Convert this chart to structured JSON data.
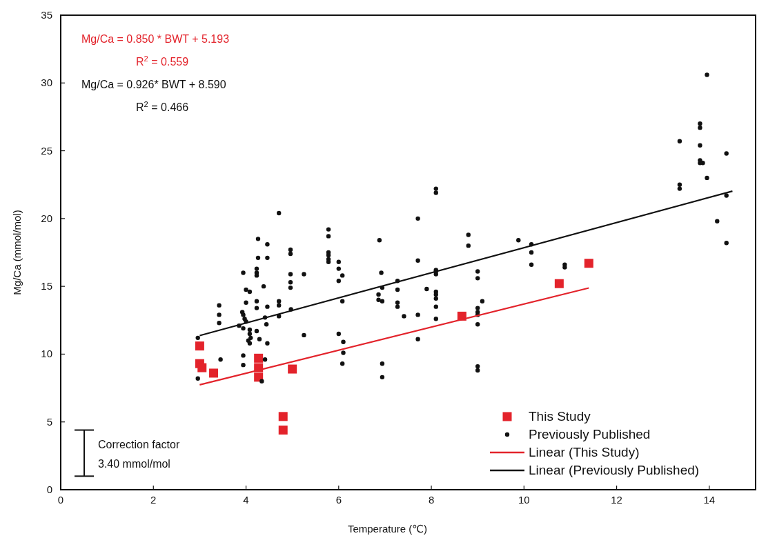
{
  "chart_data": {
    "type": "scatter",
    "xlabel": "Temperature (℃)",
    "ylabel": "Mg/Ca (mmol/mol)",
    "xlim": [
      0,
      15
    ],
    "ylim": [
      0,
      35
    ],
    "xticks": [
      0,
      2,
      4,
      6,
      8,
      10,
      12,
      14
    ],
    "yticks": [
      0,
      5,
      10,
      15,
      20,
      25,
      30,
      35
    ],
    "grid": false,
    "legend": "bottom right",
    "annotations": [
      "Mg/Ca = 0.850 * BWT + 5.193",
      "R$^{2}$ = 0.559",
      "Mg/Ca = 0.926* BWT + 8.590",
      "R$^{2}$ = 0.466",
      "Correction factor\n3.40 mmol/mol"
    ],
    "series": [
      {
        "name": "This Study",
        "marker": "square",
        "color": "#e3232b",
        "x": [
          3.0,
          3.0,
          3.05,
          3.3,
          4.27,
          4.27,
          4.27,
          5.0,
          4.8,
          4.8,
          8.66,
          10.76,
          11.4
        ],
        "values": [
          10.6,
          9.3,
          9.0,
          8.6,
          9.7,
          9.0,
          8.3,
          8.9,
          5.4,
          4.4,
          12.8,
          15.2,
          16.7
        ]
      },
      {
        "name": "Previously Published",
        "marker": "circle",
        "color": "#111111",
        "x": [
          4.71,
          4.26,
          4.46,
          4.26,
          4.46,
          4.96,
          4.96,
          3.94,
          4.23,
          4.23,
          4.23,
          4.96,
          4.96,
          4.96,
          5.25,
          4.38,
          4.0,
          4.08,
          3.42,
          3.42,
          3.42,
          4.0,
          4.23,
          4.23,
          4.46,
          4.71,
          4.71,
          4.71,
          4.97,
          3.92,
          3.94,
          3.97,
          4.0,
          4.41,
          4.44,
          3.85,
          3.94,
          4.08,
          4.08,
          4.1,
          4.05,
          4.08,
          4.23,
          4.29,
          4.46,
          5.25,
          2.96,
          3.45,
          3.94,
          3.94,
          4.41,
          2.96,
          4.34,
          5.78,
          5.78,
          5.78,
          5.78,
          5.78,
          5.78,
          6.0,
          6.0,
          6.08,
          6.0,
          6.08,
          6.0,
          6.1,
          6.1,
          6.08,
          6.88,
          6.92,
          6.94,
          6.86,
          6.86,
          6.94,
          6.94,
          6.94,
          7.27,
          7.27,
          7.27,
          7.27,
          7.41,
          7.71,
          7.71,
          7.71,
          7.71,
          7.9,
          8.1,
          8.1,
          8.1,
          8.1,
          8.1,
          8.1,
          8.1,
          8.1,
          8.1,
          8.1,
          8.8,
          8.8,
          9.0,
          9.0,
          9.1,
          9.0,
          9.0,
          9.0,
          9.0,
          9.0,
          9.0,
          9.88,
          10.16,
          10.16,
          10.16,
          10.88,
          10.88,
          13.36,
          13.36,
          13.36,
          13.86,
          13.95,
          14.37,
          14.37,
          14.17,
          14.37,
          13.8,
          13.8,
          13.8,
          13.8,
          13.8,
          13.95
        ],
        "values": [
          20.4,
          18.5,
          18.1,
          17.1,
          17.1,
          17.7,
          17.4,
          16.0,
          16.3,
          16.0,
          15.8,
          15.9,
          15.3,
          14.9,
          15.9,
          15.0,
          14.75,
          14.6,
          13.6,
          12.9,
          12.3,
          13.8,
          13.9,
          13.4,
          13.5,
          13.9,
          13.6,
          12.8,
          13.3,
          13.1,
          12.9,
          12.6,
          12.4,
          12.7,
          12.2,
          12.1,
          11.9,
          11.8,
          11.5,
          11.2,
          11.0,
          10.8,
          11.7,
          11.1,
          10.8,
          11.4,
          11.2,
          9.6,
          9.9,
          9.2,
          9.6,
          8.2,
          8.0,
          19.2,
          18.7,
          17.5,
          17.3,
          17.0,
          16.8,
          16.8,
          16.3,
          15.8,
          15.4,
          13.9,
          11.5,
          10.9,
          10.1,
          9.3,
          18.4,
          16.0,
          14.9,
          14.4,
          14.0,
          13.9,
          9.3,
          8.3,
          15.4,
          14.75,
          13.8,
          13.5,
          12.8,
          20.0,
          16.9,
          12.9,
          11.1,
          14.8,
          16.2,
          15.9,
          14.6,
          14.4,
          14.1,
          13.5,
          12.6,
          21.9,
          22.2,
          16.1,
          18.8,
          18.0,
          16.1,
          15.6,
          13.9,
          13.4,
          13.1,
          12.9,
          12.2,
          9.1,
          8.8,
          18.4,
          18.1,
          17.5,
          16.6,
          16.6,
          16.4,
          22.5,
          22.2,
          25.7,
          24.1,
          23.0,
          24.8,
          21.7,
          19.8,
          18.2,
          27.0,
          26.7,
          25.4,
          24.3,
          24.1,
          30.6
        ]
      },
      {
        "name": "Linear (This Study)",
        "type": "line",
        "color": "#e3232b",
        "x": [
          3.0,
          11.4
        ],
        "values": [
          7.74,
          14.88
        ]
      },
      {
        "name": "Linear (Previously Published)",
        "type": "line",
        "color": "#111111",
        "x": [
          3.0,
          14.5
        ],
        "values": [
          11.37,
          22.02
        ]
      }
    ]
  }
}
